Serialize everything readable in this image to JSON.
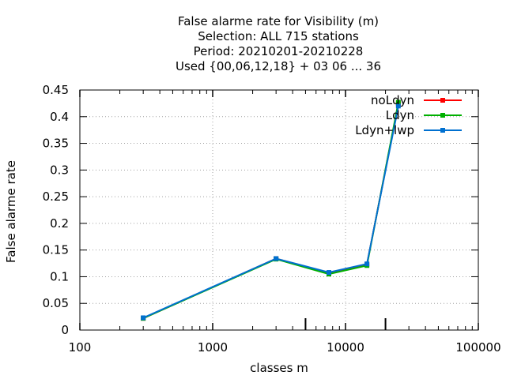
{
  "chart_data": {
    "type": "line",
    "title_lines": [
      "False alarme rate  for Visibility (m)",
      "Selection: ALL    715 stations",
      "Period: 20210201-20210228",
      "Used {00,06,12,18} + 03 06 ... 36"
    ],
    "xlabel": "classes m",
    "ylabel": "False alarme rate",
    "x_scale": "log",
    "xlim": [
      100,
      100000
    ],
    "ylim": [
      0,
      0.45
    ],
    "x_ticks": [
      100,
      1000,
      10000,
      100000
    ],
    "x_tick_labels": [
      "100",
      "1000",
      "10000",
      "100000"
    ],
    "y_ticks": [
      0,
      0.05,
      0.1,
      0.15,
      0.2,
      0.25,
      0.3,
      0.35,
      0.4,
      0.45
    ],
    "y_tick_labels": [
      "0",
      "0.05",
      "0.1",
      "0.15",
      "0.2",
      "0.25",
      "0.3",
      "0.35",
      "0.4",
      "0.45"
    ],
    "grid": true,
    "legend_position": "top-right",
    "class_markers": [
      5000,
      20000
    ],
    "series": [
      {
        "name": "noLdyn",
        "color": "#ff0000",
        "x": [
          300,
          3000,
          7500,
          14500,
          25000
        ],
        "y": [
          0.022,
          0.134,
          0.107,
          0.123,
          0.424
        ]
      },
      {
        "name": "Ldyn",
        "color": "#00b000",
        "x": [
          300,
          3000,
          7500,
          14500,
          25000
        ],
        "y": [
          0.022,
          0.133,
          0.105,
          0.121,
          0.427
        ]
      },
      {
        "name": "Ldyn+lwp",
        "color": "#0070d0",
        "x": [
          300,
          3000,
          7500,
          14500,
          25000
        ],
        "y": [
          0.023,
          0.134,
          0.108,
          0.124,
          0.42
        ]
      }
    ]
  }
}
